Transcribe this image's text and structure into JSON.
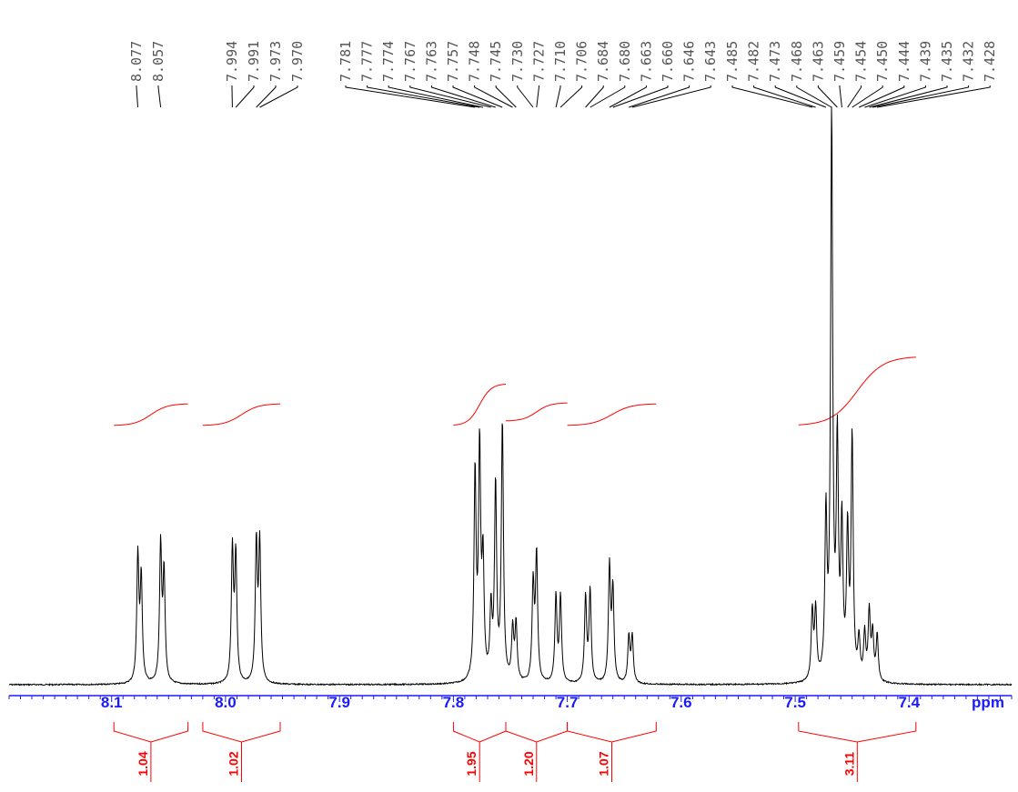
{
  "chart_data": {
    "type": "line",
    "xlabel": "ppm",
    "xlim": [
      8.19,
      7.31
    ],
    "x_reversed": true,
    "x_ticks": [
      "8.1",
      "8.0",
      "7.9",
      "7.8",
      "7.7",
      "7.6",
      "7.5",
      "7.4"
    ],
    "peak_labels": [
      "8.077",
      "8.057",
      "7.994",
      "7.991",
      "7.973",
      "7.970",
      "7.781",
      "7.777",
      "7.774",
      "7.767",
      "7.763",
      "7.757",
      "7.748",
      "7.745",
      "7.730",
      "7.727",
      "7.710",
      "7.706",
      "7.684",
      "7.680",
      "7.663",
      "7.660",
      "7.646",
      "7.643",
      "7.485",
      "7.482",
      "7.473",
      "7.468",
      "7.463",
      "7.459",
      "7.454",
      "7.450",
      "7.444",
      "7.439",
      "7.435",
      "7.432",
      "7.428"
    ],
    "peaks": [
      {
        "ppm": 8.077,
        "height": 0.22
      },
      {
        "ppm": 8.074,
        "height": 0.18
      },
      {
        "ppm": 8.057,
        "height": 0.24
      },
      {
        "ppm": 8.054,
        "height": 0.19
      },
      {
        "ppm": 7.994,
        "height": 0.23
      },
      {
        "ppm": 7.991,
        "height": 0.22
      },
      {
        "ppm": 7.973,
        "height": 0.24
      },
      {
        "ppm": 7.97,
        "height": 0.24
      },
      {
        "ppm": 7.781,
        "height": 0.36
      },
      {
        "ppm": 7.777,
        "height": 0.4
      },
      {
        "ppm": 7.774,
        "height": 0.2
      },
      {
        "ppm": 7.767,
        "height": 0.12
      },
      {
        "ppm": 7.763,
        "height": 0.34
      },
      {
        "ppm": 7.757,
        "height": 0.45
      },
      {
        "ppm": 7.748,
        "height": 0.09
      },
      {
        "ppm": 7.745,
        "height": 0.1
      },
      {
        "ppm": 7.73,
        "height": 0.17
      },
      {
        "ppm": 7.727,
        "height": 0.22
      },
      {
        "ppm": 7.71,
        "height": 0.15
      },
      {
        "ppm": 7.706,
        "height": 0.15
      },
      {
        "ppm": 7.684,
        "height": 0.15
      },
      {
        "ppm": 7.68,
        "height": 0.16
      },
      {
        "ppm": 7.663,
        "height": 0.2
      },
      {
        "ppm": 7.66,
        "height": 0.16
      },
      {
        "ppm": 7.646,
        "height": 0.08
      },
      {
        "ppm": 7.643,
        "height": 0.08
      },
      {
        "ppm": 7.485,
        "height": 0.12
      },
      {
        "ppm": 7.482,
        "height": 0.12
      },
      {
        "ppm": 7.473,
        "height": 0.28
      },
      {
        "ppm": 7.468,
        "height": 0.98
      },
      {
        "ppm": 7.463,
        "height": 0.4
      },
      {
        "ppm": 7.459,
        "height": 0.26
      },
      {
        "ppm": 7.454,
        "height": 0.25
      },
      {
        "ppm": 7.45,
        "height": 0.42
      },
      {
        "ppm": 7.444,
        "height": 0.07
      },
      {
        "ppm": 7.439,
        "height": 0.08
      },
      {
        "ppm": 7.435,
        "height": 0.12
      },
      {
        "ppm": 7.432,
        "height": 0.08
      },
      {
        "ppm": 7.428,
        "height": 0.08
      }
    ],
    "integrals": [
      {
        "from": 8.098,
        "to": 8.033,
        "value": "1.04"
      },
      {
        "from": 8.02,
        "to": 7.952,
        "value": "1.02"
      },
      {
        "from": 7.8,
        "to": 7.754,
        "value": "1.95"
      },
      {
        "from": 7.754,
        "to": 7.7,
        "value": "1.20"
      },
      {
        "from": 7.7,
        "to": 7.622,
        "value": "1.07"
      },
      {
        "from": 7.497,
        "to": 7.394,
        "value": "3.11"
      }
    ],
    "colors": {
      "spectrum": "#000000",
      "axis": "#1a1aff",
      "integral": "#ff0000",
      "labels": "#555555"
    }
  }
}
